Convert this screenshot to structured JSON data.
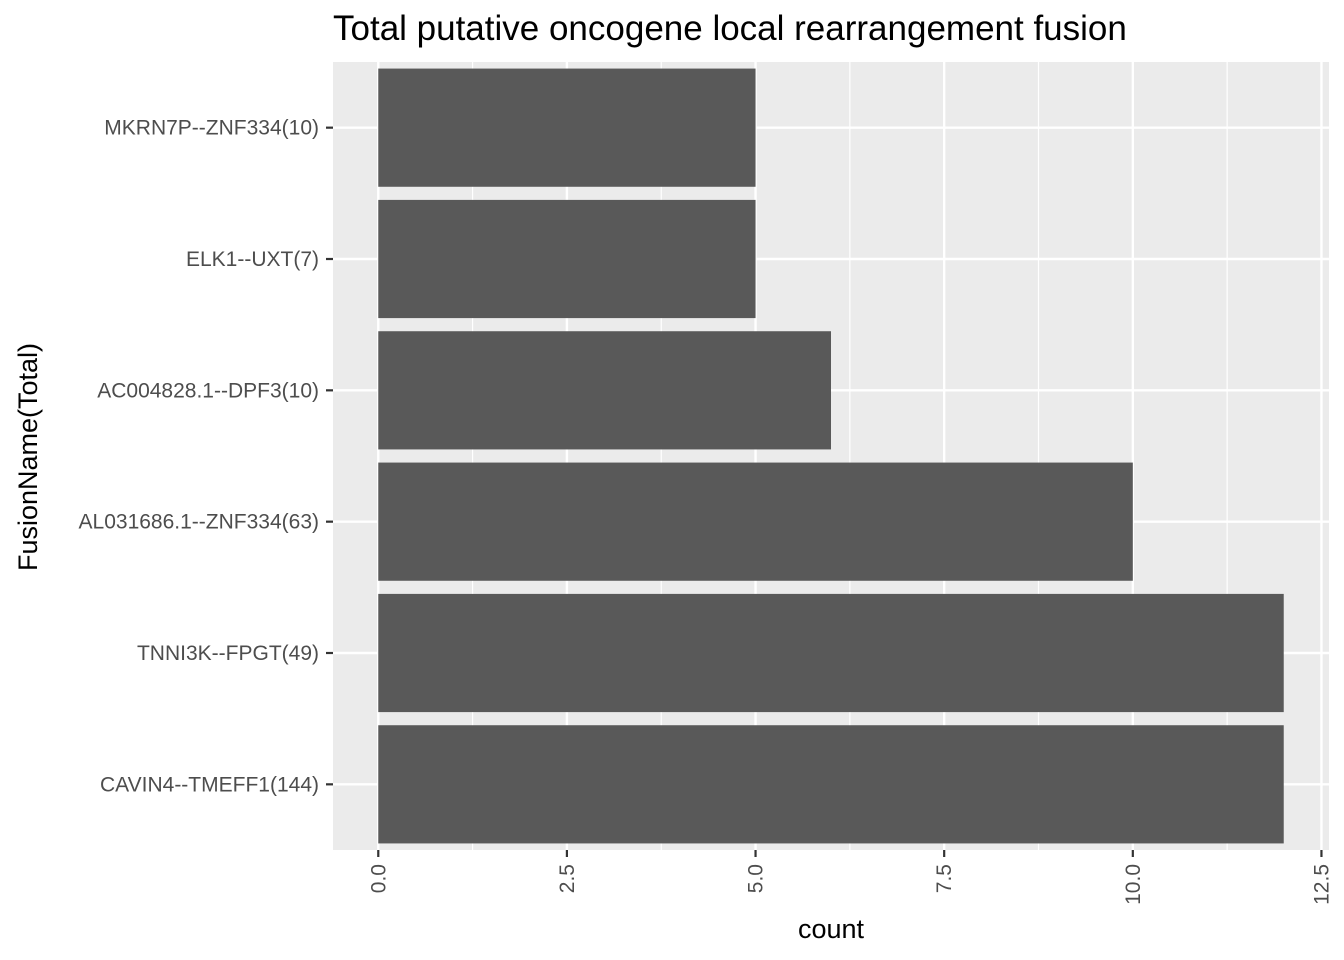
{
  "chart_data": {
    "type": "bar",
    "orientation": "horizontal",
    "title": "Total putative oncogene local rearrangement fusion",
    "xlabel": "count",
    "ylabel": "FusionName(Total)",
    "categories": [
      "MKRN7P--ZNF334(10)",
      "ELK1--UXT(7)",
      "AC004828.1--DPF3(10)",
      "AL031686.1--ZNF334(63)",
      "TNNI3K--FPGT(49)",
      "CAVIN4--TMEFF1(144)"
    ],
    "values": [
      5,
      5,
      6,
      10,
      12,
      12
    ],
    "xlim": [
      -0.6,
      12.6
    ],
    "x_ticks": [
      0.0,
      2.5,
      5.0,
      7.5,
      10.0,
      12.5
    ],
    "x_tick_labels": [
      "0.0",
      "2.5",
      "5.0",
      "7.5",
      "10.0",
      "12.5"
    ],
    "grid": true,
    "panel_background": "#ebebeb",
    "bar_color": "#595959"
  }
}
